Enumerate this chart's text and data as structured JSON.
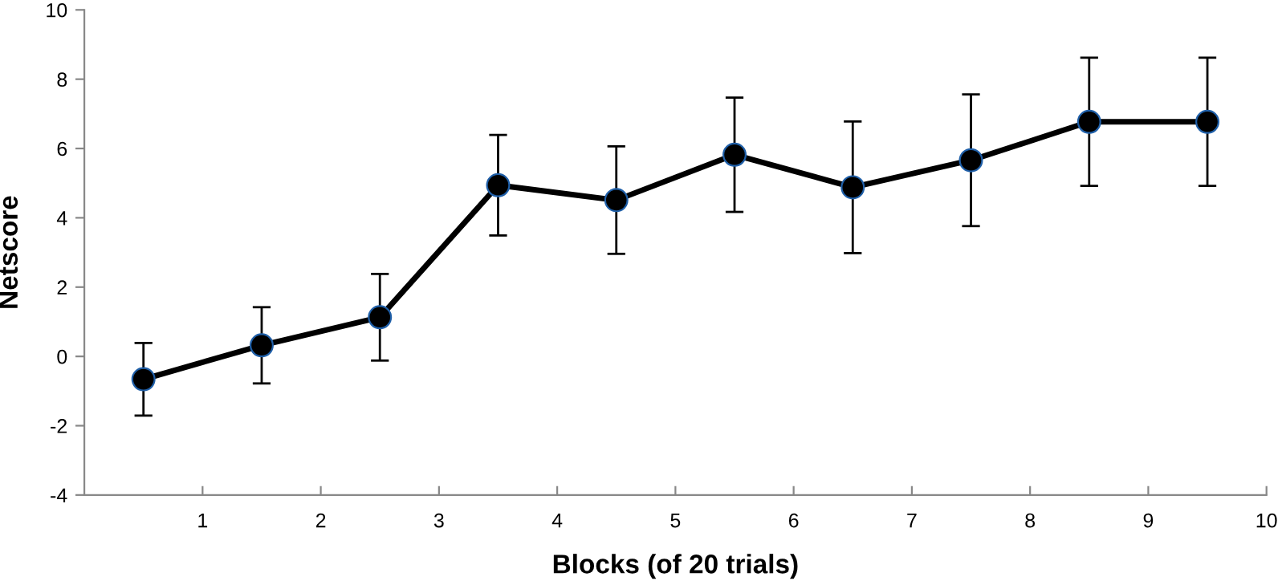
{
  "chart_data": {
    "type": "line",
    "xlabel": "Blocks (of 20 trials)",
    "ylabel": "Netscore",
    "x": [
      0.5,
      1.5,
      2.5,
      3.5,
      4.5,
      5.5,
      6.5,
      7.5,
      8.5,
      9.5
    ],
    "series": [
      {
        "color": "#000000",
        "values": [
          -0.66,
          0.32,
          1.13,
          4.94,
          4.51,
          5.82,
          4.88,
          5.66,
          6.77,
          6.77
        ],
        "errors": [
          1.05,
          1.1,
          1.25,
          1.45,
          1.55,
          1.65,
          1.9,
          1.9,
          1.85,
          1.85
        ]
      }
    ],
    "xlim": [
      0,
      10
    ],
    "xticks": [
      1,
      2,
      3,
      4,
      5,
      6,
      7,
      8,
      9,
      10
    ],
    "ylim": [
      -4,
      10
    ],
    "yticks": [
      -4,
      -2,
      0,
      2,
      4,
      6,
      8,
      10
    ],
    "grid": false,
    "legend": false,
    "marker": "circle",
    "line_style": "solid"
  }
}
